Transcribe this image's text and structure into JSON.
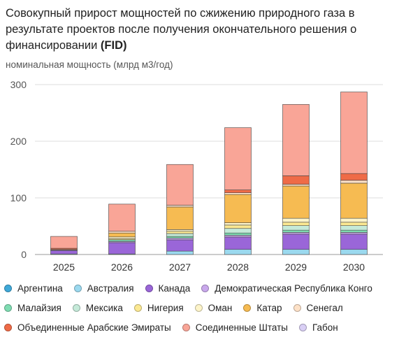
{
  "chart_data": {
    "type": "bar",
    "stacked": true,
    "title_main": "Совокупный прирост мощностей по сжижению природного газа в результате проектов после получения окончательного решения о финансировании",
    "title_bold": "(FID)",
    "ylabel": "номинальная мощность (млрд м3/год)",
    "categories": [
      "2025",
      "2026",
      "2027",
      "2028",
      "2029",
      "2030"
    ],
    "ylim": [
      0,
      300
    ],
    "yticks": [
      "0",
      "100",
      "200",
      "300"
    ],
    "grid": true,
    "legend_position": "bottom",
    "series": [
      {
        "name": "Аргентина",
        "color": "#3fa9d9",
        "values": [
          0,
          0,
          0,
          0,
          0,
          0
        ]
      },
      {
        "name": "Австралия",
        "color": "#9bd9ef",
        "values": [
          1,
          1,
          6,
          9,
          9,
          9
        ]
      },
      {
        "name": "Канада",
        "color": "#9a66d8",
        "values": [
          6,
          20,
          20,
          22,
          27,
          27
        ]
      },
      {
        "name": "Демократическая Республика Конго",
        "color": "#c9a8ec",
        "values": [
          1,
          2,
          3,
          3,
          3,
          3
        ]
      },
      {
        "name": "Малайзия",
        "color": "#7fdcb2",
        "values": [
          0,
          3,
          3,
          4,
          4,
          4
        ]
      },
      {
        "name": "Мексика",
        "color": "#c5ead9",
        "values": [
          0,
          0,
          5,
          8,
          8,
          8
        ]
      },
      {
        "name": "Нигерия",
        "color": "#fbe892",
        "values": [
          0,
          2,
          4,
          6,
          6,
          6
        ]
      },
      {
        "name": "Оман",
        "color": "#fdf4c9",
        "values": [
          1,
          3,
          3,
          4,
          7,
          7
        ]
      },
      {
        "name": "Катар",
        "color": "#f6bb52",
        "values": [
          0,
          7,
          40,
          50,
          57,
          62
        ]
      },
      {
        "name": "Сенегал",
        "color": "#fde1c7",
        "values": [
          0,
          3,
          3,
          3,
          3,
          5
        ]
      },
      {
        "name": "Объединенные Арабские Эмираты",
        "color": "#ef6b47",
        "values": [
          2,
          0,
          0,
          5,
          15,
          12
        ]
      },
      {
        "name": "Соединенные Штаты",
        "color": "#f9a597",
        "values": [
          21,
          48,
          72,
          110,
          126,
          144
        ]
      },
      {
        "name": "Габон",
        "color": "#d9cff5",
        "values": [
          0,
          0,
          0,
          0,
          0,
          0
        ]
      }
    ]
  }
}
